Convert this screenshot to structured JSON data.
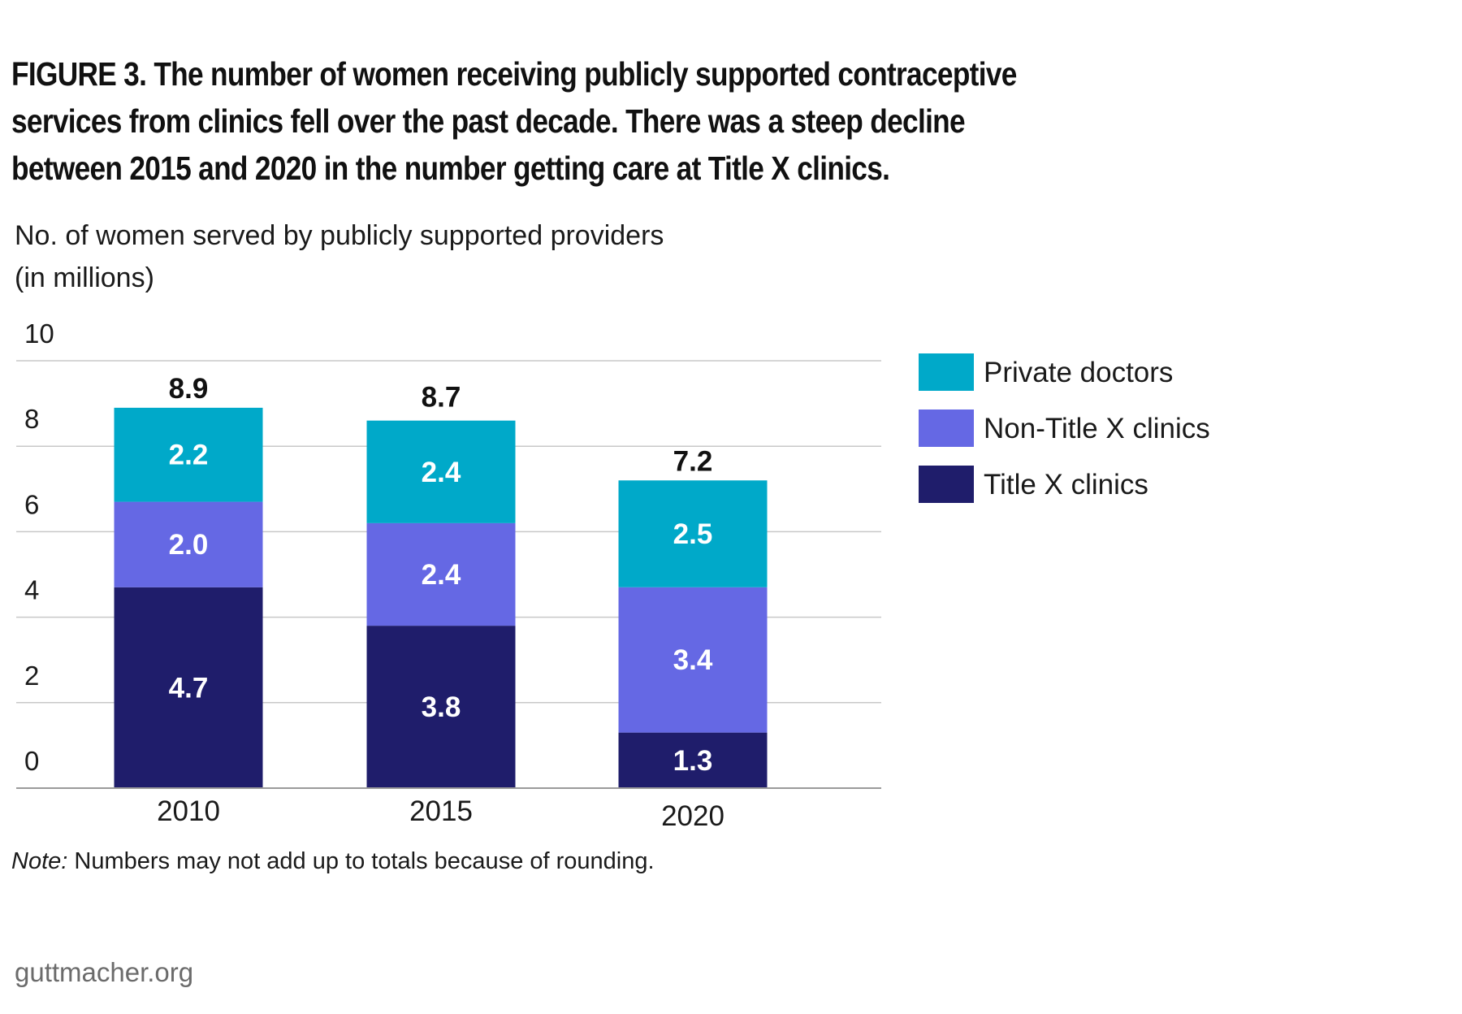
{
  "title": "FIGURE 3. The number of women receiving publicly supported contraceptive services from clinics fell over the past decade. There was a steep decline between 2015 and 2020 in the number getting care at Title X clinics.",
  "y_axis_title_line1": "No. of women served by publicly supported providers",
  "y_axis_title_line2": "(in millions)",
  "note_prefix": "Note:",
  "note_text": "Numbers may not add up to totals because of rounding.",
  "source": "guttmacher.org",
  "chart_data": {
    "type": "bar",
    "stacked": true,
    "categories": [
      "2010",
      "2015",
      "2020"
    ],
    "series": [
      {
        "name": "Title X clinics",
        "values": [
          4.7,
          3.8,
          1.3
        ],
        "labels": [
          "4.7",
          "3.8",
          "1.3"
        ],
        "color": "#1f1d6b"
      },
      {
        "name": "Non-Title X clinics",
        "values": [
          2.0,
          2.4,
          3.4
        ],
        "labels": [
          "2.0",
          "2.4",
          "3.4"
        ],
        "color": "#6568e4"
      },
      {
        "name": "Private doctors",
        "values": [
          2.2,
          2.4,
          2.5
        ],
        "labels": [
          "2.2",
          "2.4",
          "2.5"
        ],
        "color": "#00a9c9"
      }
    ],
    "totals": [
      8.9,
      8.7,
      7.2
    ],
    "total_labels": [
      "8.9",
      "8.7",
      "7.2"
    ],
    "ylim": [
      0,
      10
    ],
    "yticks": [
      0,
      2,
      4,
      6,
      8,
      10
    ],
    "ytick_labels": [
      "0",
      "2",
      "4",
      "6",
      "8",
      "10"
    ],
    "grid": true,
    "legend_position": "right",
    "legend_order": [
      "Private doctors",
      "Non-Title X clinics",
      "Title X clinics"
    ]
  }
}
